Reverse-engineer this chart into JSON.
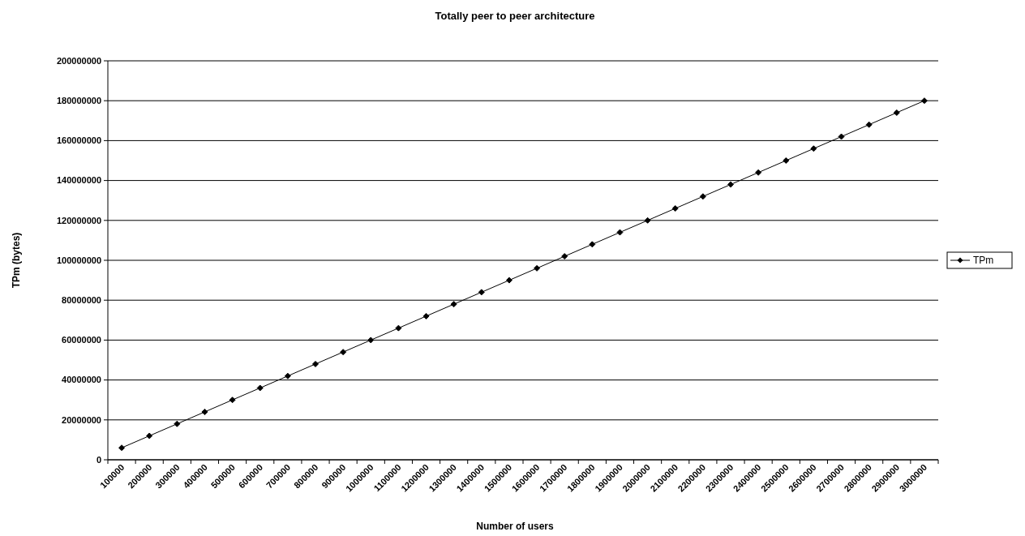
{
  "chart_data": {
    "type": "line",
    "title": "Totally peer to peer architecture",
    "xlabel": "Number of users",
    "ylabel": "TPm (bytes)",
    "categories": [
      "100000",
      "200000",
      "300000",
      "400000",
      "500000",
      "600000",
      "700000",
      "800000",
      "900000",
      "1000000",
      "1100000",
      "1200000",
      "1300000",
      "1400000",
      "1500000",
      "1600000",
      "1700000",
      "1800000",
      "1900000",
      "2000000",
      "2100000",
      "2200000",
      "2300000",
      "2400000",
      "2500000",
      "2600000",
      "2700000",
      "2800000",
      "2900000",
      "3000000"
    ],
    "series": [
      {
        "name": "TPm",
        "color": "#000000",
        "values": [
          6000000,
          12000000,
          18000000,
          24000000,
          30000000,
          36000000,
          42000000,
          48000000,
          54000000,
          60000000,
          66000000,
          72000000,
          78000000,
          84000000,
          90000000,
          96000000,
          102000000,
          108000000,
          114000000,
          120000000,
          126000000,
          132000000,
          138000000,
          144000000,
          150000000,
          156000000,
          162000000,
          168000000,
          174000000,
          180000000
        ]
      }
    ],
    "ylim": [
      0,
      200000000
    ],
    "yticks": [
      0,
      20000000,
      40000000,
      60000000,
      80000000,
      100000000,
      120000000,
      140000000,
      160000000,
      180000000,
      200000000
    ],
    "grid": "y",
    "legend": "right",
    "marker": "diamond",
    "line_style": "solid"
  }
}
